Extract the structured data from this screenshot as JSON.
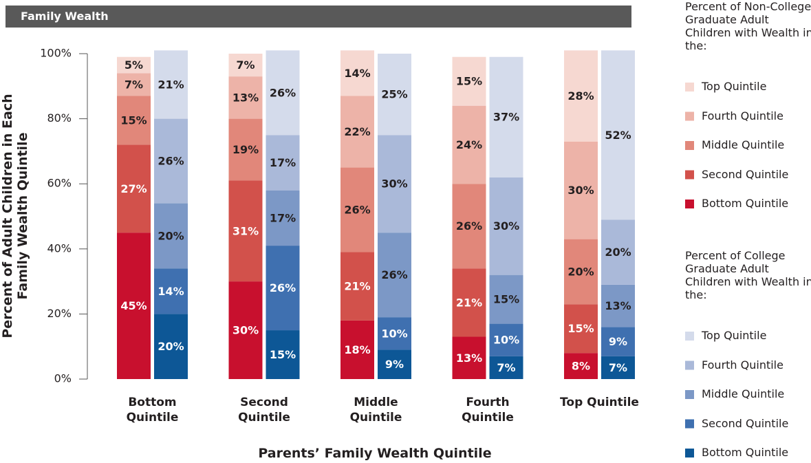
{
  "chart_data": {
    "type": "bar",
    "stacked": true,
    "title": "Family Wealth",
    "xlabel": "Parents’ Family Wealth Quintile",
    "ylabel": "Percent of Adult Children in Each Family Wealth Quintile",
    "categories": [
      "Bottom Quintile",
      "Second Quintile",
      "Middle Quintile",
      "Fourth Quintile",
      "Top Quintile"
    ],
    "ylim": [
      0,
      100
    ],
    "yticks": [
      {
        "value": 0,
        "label": "0%"
      },
      {
        "value": 20,
        "label": "20%"
      },
      {
        "value": 40,
        "label": "40%"
      },
      {
        "value": 60,
        "label": "60%"
      },
      {
        "value": 80,
        "label": "80%"
      },
      {
        "value": 100,
        "label": "100%"
      }
    ],
    "groups": [
      {
        "title": "Percent of Non-College Graduate Adult Children with Wealth in the:",
        "series": [
          {
            "name": "Bottom Quintile",
            "color": "#c8102e",
            "label_color": "#ffffff",
            "values": [
              45,
              30,
              18,
              13,
              8
            ],
            "value_labels": [
              "45%",
              "30%",
              "18%",
              "13%",
              "8%"
            ]
          },
          {
            "name": "Second Quintile",
            "color": "#d2514b",
            "label_color": "#ffffff",
            "values": [
              27,
              31,
              21,
              21,
              15
            ],
            "value_labels": [
              "27%",
              "31%",
              "21%",
              "21%",
              "15%"
            ]
          },
          {
            "name": "Middle Quintile",
            "color": "#e1877a",
            "label_color": "#231f20",
            "values": [
              15,
              19,
              26,
              26,
              20
            ],
            "value_labels": [
              "15%",
              "19%",
              "26%",
              "26%",
              "20%"
            ]
          },
          {
            "name": "Fourth Quintile",
            "color": "#edb3a8",
            "label_color": "#231f20",
            "values": [
              7,
              13,
              22,
              24,
              30
            ],
            "value_labels": [
              "7%",
              "13%",
              "22%",
              "24%",
              "30%"
            ]
          },
          {
            "name": "Top Quintile",
            "color": "#f6d8d1",
            "label_color": "#231f20",
            "values": [
              5,
              7,
              14,
              15,
              28
            ],
            "value_labels": [
              "5%",
              "7%",
              "14%",
              "15%",
              "28%"
            ]
          }
        ]
      },
      {
        "title": "Percent of College Graduate Adult Children with Wealth in the:",
        "series": [
          {
            "name": "Bottom Quintile",
            "color": "#0d5796",
            "label_color": "#ffffff",
            "values": [
              20,
              15,
              9,
              7,
              7
            ],
            "value_labels": [
              "20%",
              "15%",
              "9%",
              "7%",
              "7%"
            ]
          },
          {
            "name": "Second Quintile",
            "color": "#3f70b0",
            "label_color": "#ffffff",
            "values": [
              14,
              26,
              10,
              10,
              9
            ],
            "value_labels": [
              "14%",
              "26%",
              "10%",
              "10%",
              "9%"
            ]
          },
          {
            "name": "Middle Quintile",
            "color": "#7c98c6",
            "label_color": "#231f20",
            "values": [
              20,
              17,
              26,
              15,
              13
            ],
            "value_labels": [
              "20%",
              "17%",
              "26%",
              "15%",
              "13%"
            ]
          },
          {
            "name": "Fourth Quintile",
            "color": "#aab9d9",
            "label_color": "#231f20",
            "values": [
              26,
              17,
              30,
              30,
              20
            ],
            "value_labels": [
              "26%",
              "17%",
              "30%",
              "30%",
              "20%"
            ]
          },
          {
            "name": "Top Quintile",
            "color": "#d4dbeb",
            "label_color": "#231f20",
            "values": [
              21,
              26,
              25,
              37,
              52
            ],
            "value_labels": [
              "21%",
              "26%",
              "25%",
              "37%",
              "52%"
            ]
          }
        ]
      }
    ]
  }
}
